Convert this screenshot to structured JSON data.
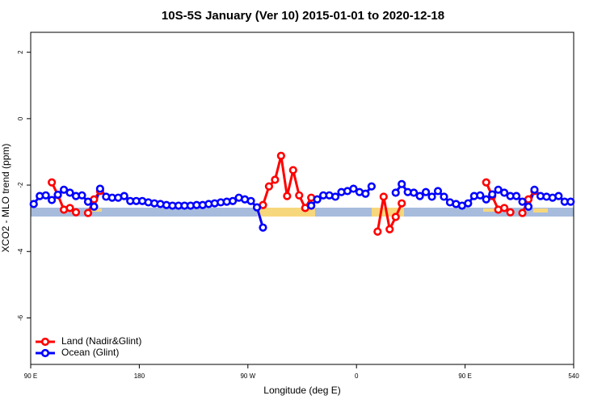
{
  "chart_data": {
    "type": "line",
    "title": "10S-5S January (Ver 10)   2015-01-01 to 2020-12-18",
    "xlabel": "Longitude (deg E)",
    "ylabel": "XCO2 - MLO trend (ppm)",
    "xlim": [
      90,
      540
    ],
    "ylim": [
      -7.4,
      2.6
    ],
    "xticks": [
      {
        "value": 90,
        "label": "90 E"
      },
      180,
      {
        "value": 270,
        "label": "90 W"
      },
      {
        "value": 360,
        "label": "0"
      },
      {
        "value": 450,
        "label": "90 E"
      },
      540
    ],
    "yticks": [
      -6,
      -4,
      -2,
      0,
      2
    ],
    "legend": "bottom-left",
    "x": [
      92.5,
      97.5,
      102.5,
      107.5,
      112.5,
      117.5,
      122.5,
      127.5,
      132.5,
      137.5,
      142.5,
      147.5,
      152.5,
      157.5,
      162.5,
      167.5,
      172.5,
      177.5,
      182.5,
      187.5,
      192.5,
      197.5,
      202.5,
      207.5,
      212.5,
      217.5,
      222.5,
      227.5,
      232.5,
      237.5,
      242.5,
      247.5,
      252.5,
      257.5,
      262.5,
      267.5,
      272.5,
      277.5,
      282.5,
      287.5,
      292.5,
      297.5,
      302.5,
      307.5,
      312.5,
      317.5,
      322.5,
      327.5,
      332.5,
      337.5,
      342.5,
      347.5,
      352.5,
      357.5,
      362.5,
      367.5,
      372.5,
      377.5,
      382.5,
      387.5,
      392.5,
      397.5,
      402.5,
      407.5,
      412.5,
      417.5,
      422.5,
      427.5,
      432.5,
      437.5,
      442.5,
      447.5,
      452.5,
      457.5,
      462.5,
      467.5,
      472.5,
      477.5,
      482.5,
      487.5,
      492.5,
      497.5,
      502.5,
      507.5,
      512.5,
      517.5,
      522.5,
      527.5,
      532.5,
      537.5
    ],
    "series": [
      {
        "name": "Land (Nadir&Glint)",
        "color": "#ff0000",
        "values": [
          null,
          null,
          null,
          -1.92,
          -2.3,
          -2.74,
          -2.69,
          -2.82,
          null,
          -2.84,
          -2.43,
          -2.18,
          null,
          null,
          null,
          null,
          null,
          null,
          null,
          null,
          null,
          null,
          null,
          null,
          null,
          null,
          null,
          null,
          null,
          null,
          null,
          null,
          null,
          null,
          null,
          null,
          null,
          null,
          -2.6,
          -2.04,
          -1.84,
          -1.12,
          -2.33,
          -1.55,
          -2.31,
          -2.69,
          -2.38,
          null,
          null,
          null,
          null,
          null,
          null,
          null,
          null,
          null,
          null,
          -3.4,
          -2.35,
          -3.33,
          -2.96,
          -2.55,
          null,
          null,
          null,
          null,
          null,
          null,
          null,
          null,
          null,
          null,
          null,
          null,
          null,
          -1.92,
          -2.33,
          -2.74,
          -2.69,
          -2.82,
          null,
          -2.84,
          -2.43,
          -2.18,
          null,
          null,
          null,
          null,
          null,
          null
        ]
      },
      {
        "name": "Ocean (Glint)",
        "color": "#0000ff",
        "values": [
          -2.57,
          -2.33,
          -2.31,
          -2.45,
          -2.29,
          -2.14,
          -2.23,
          -2.33,
          -2.31,
          -2.5,
          -2.65,
          -2.11,
          -2.35,
          -2.38,
          -2.38,
          -2.33,
          -2.48,
          -2.48,
          -2.48,
          -2.52,
          -2.55,
          -2.57,
          -2.6,
          -2.62,
          -2.62,
          -2.62,
          -2.62,
          -2.6,
          -2.6,
          -2.57,
          -2.55,
          -2.52,
          -2.5,
          -2.48,
          -2.38,
          -2.43,
          -2.48,
          -2.67,
          -3.28,
          null,
          null,
          null,
          null,
          null,
          null,
          null,
          -2.62,
          -2.43,
          -2.31,
          -2.31,
          -2.35,
          -2.21,
          -2.18,
          -2.11,
          -2.21,
          -2.26,
          -2.04,
          null,
          null,
          null,
          -2.23,
          -1.97,
          -2.21,
          -2.23,
          -2.33,
          -2.21,
          -2.35,
          -2.18,
          -2.35,
          -2.52,
          -2.57,
          -2.62,
          -2.55,
          -2.33,
          -2.31,
          -2.43,
          -2.28,
          -2.14,
          -2.23,
          -2.33,
          -2.33,
          -2.5,
          -2.65,
          -2.14,
          -2.33,
          -2.35,
          -2.38,
          -2.33,
          -2.5,
          -2.5
        ]
      }
    ]
  }
}
